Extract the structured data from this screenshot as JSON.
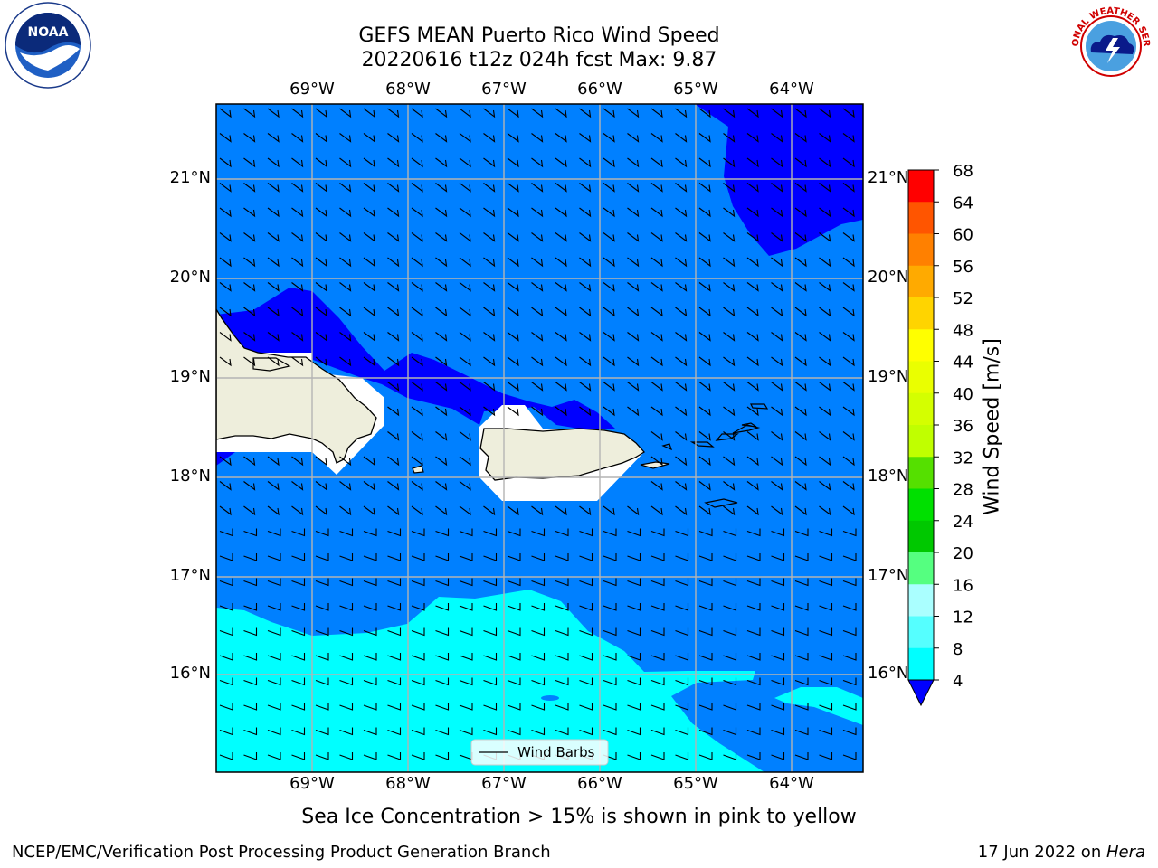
{
  "title": {
    "line1": "GEFS MEAN Puerto Rico Wind Speed",
    "line2": "20220616 t12z 024h fcst   Max: 9.87"
  },
  "map": {
    "lon_labels": [
      "69°W",
      "68°W",
      "67°W",
      "66°W",
      "65°W",
      "64°W"
    ],
    "lat_labels": [
      "21°N",
      "20°N",
      "19°N",
      "18°N",
      "17°N",
      "16°N"
    ],
    "legend_label": "Wind Barbs",
    "colors": {
      "ocean_deep": "#0000ff",
      "ocean_mid": "#0080ff",
      "ocean_light": "#00ffff",
      "land": "#eeeedc"
    }
  },
  "colorbar": {
    "label": "Wind Speed [m/s]",
    "ticks": [
      "68",
      "64",
      "60",
      "56",
      "52",
      "48",
      "44",
      "40",
      "36",
      "32",
      "28",
      "24",
      "20",
      "16",
      "12",
      "8",
      "4"
    ],
    "colors": [
      "#ff0000",
      "#ff2a00",
      "#ff5500",
      "#ff8000",
      "#ffaa00",
      "#ffd400",
      "#ffff00",
      "#eaff00",
      "#d4ff00",
      "#c0ff00",
      "#55e000",
      "#00e000",
      "#00c800",
      "#55ff80",
      "#aaffff",
      "#55ffff",
      "#00ffff",
      "#0080ff"
    ],
    "extend_color": "#0000ff"
  },
  "caption": "Sea Ice Concentration > 15% is shown in pink to yellow",
  "footer": {
    "left": "NCEP/EMC/Verification Post Processing Product Generation Branch",
    "right_date": "17 Jun 2022 on ",
    "right_host": "Hera"
  },
  "logos": {
    "noaa_text": "NOAA",
    "nws_text": "NATIONAL WEATHER SERVICE"
  }
}
